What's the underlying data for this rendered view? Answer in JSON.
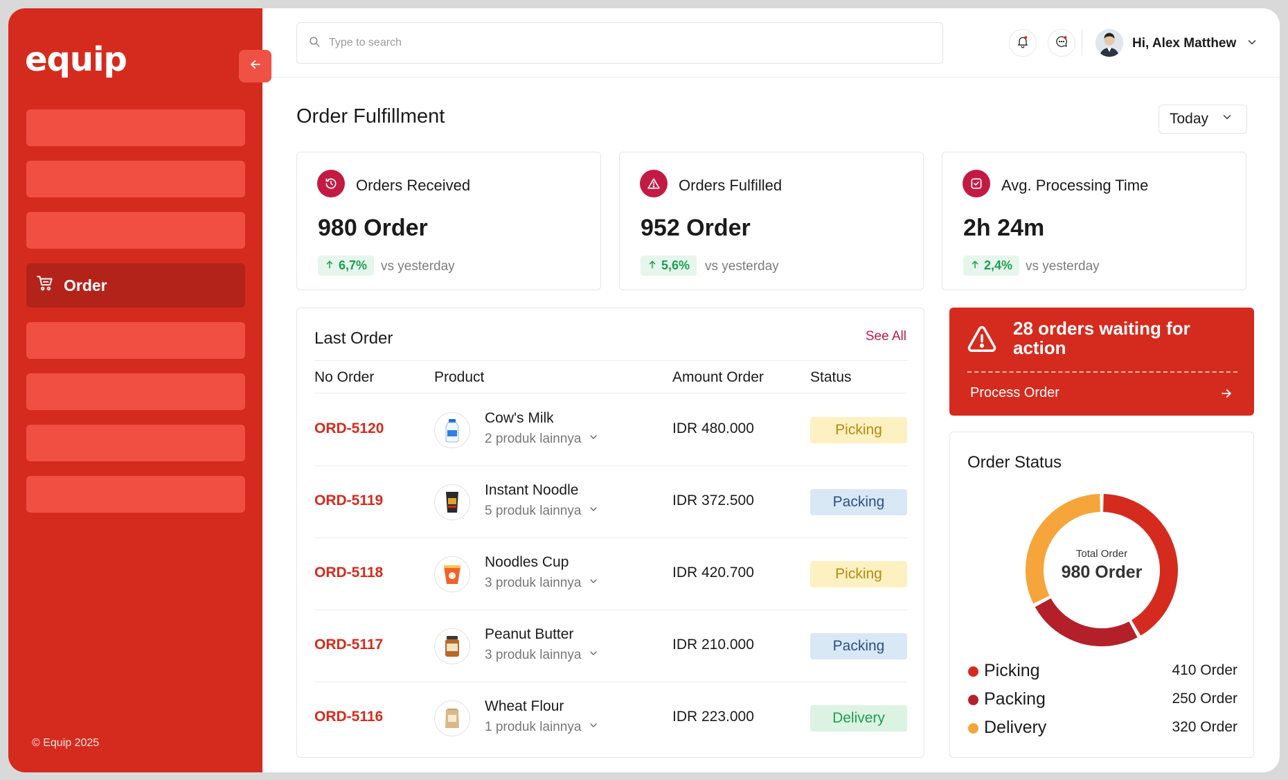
{
  "brand": {
    "logo_text": "equip",
    "copyright": "© Equip 2025",
    "accent": "#d52b1e"
  },
  "sidebar": {
    "active_item": {
      "label": "Order",
      "icon": "cart-icon"
    }
  },
  "topbar": {
    "search_placeholder": "Type to search",
    "greeting": "Hi, Alex Matthew",
    "icons": [
      "search-icon",
      "bell-icon",
      "chat-icon",
      "chevron-down-icon"
    ]
  },
  "page": {
    "title": "Order Fulfillment",
    "date_filter": "Today"
  },
  "stats": [
    {
      "label": "Orders Received",
      "value": "980 Order",
      "change": "6,7%",
      "compare": "vs yesterday",
      "icon": "clock-icon"
    },
    {
      "label": "Orders Fulfilled",
      "value": "952 Order",
      "change": "5,6%",
      "compare": "vs yesterday",
      "icon": "alert-icon"
    },
    {
      "label": "Avg. Processing Time",
      "value": "2h 24m",
      "change": "2,4%",
      "compare": "vs yesterday",
      "icon": "check-square-icon"
    }
  ],
  "last_order": {
    "title": "Last Order",
    "see_all": "See All",
    "columns": [
      "No Order",
      "Product",
      "Amount Order",
      "Status"
    ],
    "rows": [
      {
        "order_no": "ORD-5120",
        "product": "Cow's Milk",
        "more": "2 produk lainnya",
        "amount": "IDR 480.000",
        "status": "Picking"
      },
      {
        "order_no": "ORD-5119",
        "product": "Instant Noodle",
        "more": "5 produk lainnya",
        "amount": "IDR 372.500",
        "status": "Packing"
      },
      {
        "order_no": "ORD-5118",
        "product": "Noodles Cup",
        "more": "3 produk lainnya",
        "amount": "IDR 420.700",
        "status": "Picking"
      },
      {
        "order_no": "ORD-5117",
        "product": "Peanut Butter",
        "more": "3 produk lainnya",
        "amount": "IDR 210.000",
        "status": "Packing"
      },
      {
        "order_no": "ORD-5116",
        "product": "Wheat Flour",
        "more": "1 produk lainnya",
        "amount": "IDR 223.000",
        "status": "Delivery"
      }
    ]
  },
  "alert": {
    "text": "28 orders waiting for action",
    "action": "Process Order"
  },
  "order_status": {
    "title": "Order Status",
    "center_label": "Total Order",
    "center_value": "980 Order",
    "segments": [
      {
        "name": "Picking",
        "value": 410,
        "label": "410 Order",
        "color": "#d52b1e"
      },
      {
        "name": "Packing",
        "value": 250,
        "label": "250 Order",
        "color": "#b3202a"
      },
      {
        "name": "Delivery",
        "value": 320,
        "label": "320 Order",
        "color": "#f6a53a"
      }
    ]
  },
  "status_styles": {
    "Picking": {
      "bg": "#fdf1c1",
      "fg": "#b48a11"
    },
    "Packing": {
      "bg": "#d9e8f5",
      "fg": "#2d4f86"
    },
    "Delivery": {
      "bg": "#dcf3e3",
      "fg": "#1f9d53"
    }
  }
}
